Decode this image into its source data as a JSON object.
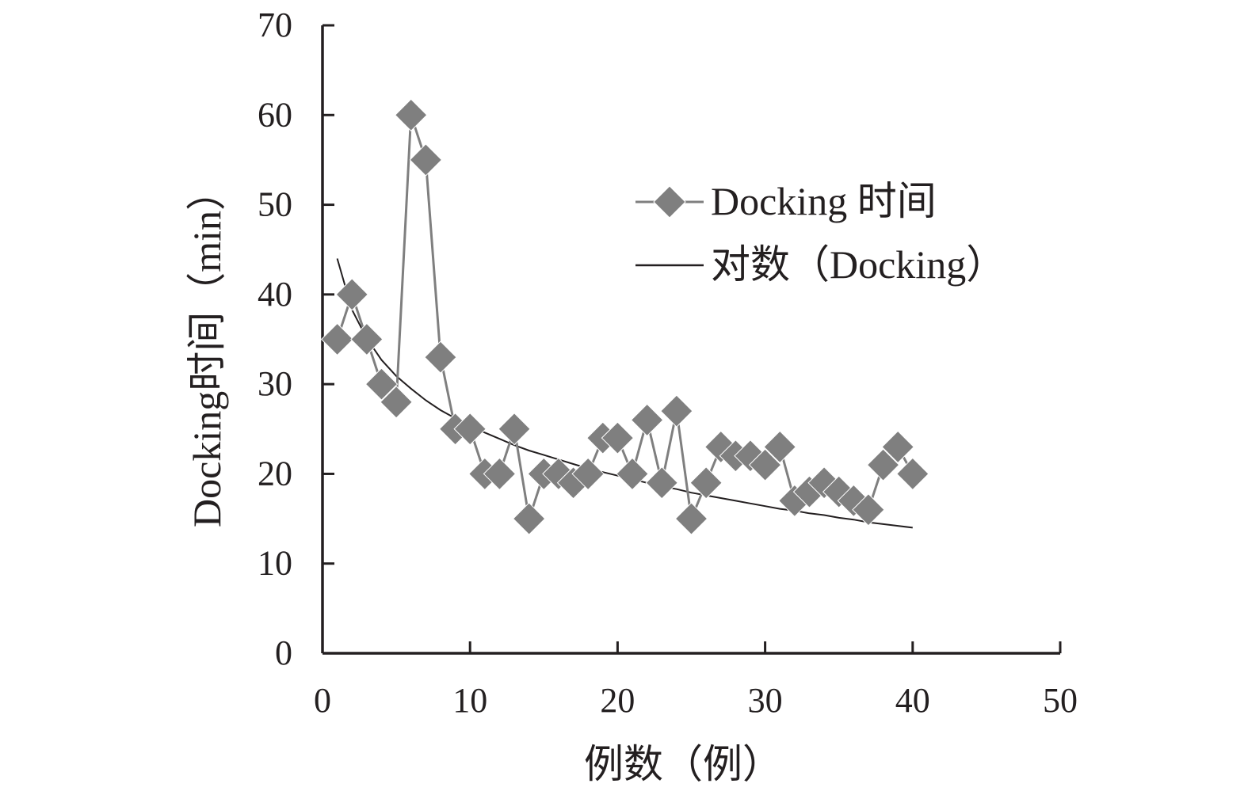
{
  "chart_data": {
    "type": "line",
    "title": "",
    "xlabel": "例数（例）",
    "ylabel": "Docking时间（min）",
    "xlim": [
      0,
      50
    ],
    "ylim": [
      0,
      70
    ],
    "xticks": [
      0,
      10,
      20,
      30,
      40,
      50
    ],
    "yticks": [
      0,
      10,
      20,
      30,
      40,
      50,
      60,
      70
    ],
    "grid": false,
    "legend_position": "top-right",
    "series": [
      {
        "name": "Docking 时间",
        "kind": "line-with-markers",
        "marker": "diamond",
        "color": "#7f7f7f",
        "x": [
          1,
          2,
          3,
          4,
          5,
          6,
          7,
          8,
          9,
          10,
          11,
          12,
          13,
          14,
          15,
          16,
          17,
          18,
          19,
          20,
          21,
          22,
          23,
          24,
          25,
          26,
          27,
          28,
          29,
          30,
          31,
          32,
          33,
          34,
          35,
          36,
          37,
          38,
          39,
          40
        ],
        "y": [
          35,
          40,
          35,
          30,
          28,
          60,
          55,
          33,
          25,
          25,
          20,
          20,
          25,
          15,
          20,
          20,
          19,
          20,
          24,
          24,
          20,
          26,
          19,
          27,
          15,
          19,
          23,
          22,
          22,
          21,
          23,
          17,
          18,
          19,
          18,
          17,
          16,
          21,
          23,
          20
        ]
      },
      {
        "name": "对数（Docking）",
        "kind": "trendline",
        "color": "#231f20",
        "x": [
          1,
          2,
          3,
          4,
          5,
          6,
          7,
          8,
          9,
          10,
          11,
          12,
          13,
          14,
          15,
          16,
          17,
          18,
          19,
          20,
          21,
          22,
          23,
          24,
          25,
          26,
          27,
          28,
          29,
          30,
          31,
          32,
          33,
          34,
          35,
          36,
          37,
          38,
          39,
          40
        ],
        "y": [
          44.0,
          38.3,
          35.1,
          32.7,
          30.9,
          29.5,
          28.2,
          27.1,
          26.2,
          25.3,
          24.6,
          23.9,
          23.2,
          22.6,
          22.1,
          21.6,
          21.1,
          20.6,
          20.2,
          19.8,
          19.4,
          19.0,
          18.6,
          18.3,
          17.9,
          17.6,
          17.3,
          17.0,
          16.7,
          16.4,
          16.1,
          15.9,
          15.6,
          15.4,
          15.1,
          14.9,
          14.6,
          14.4,
          14.2,
          14.0
        ]
      }
    ]
  }
}
